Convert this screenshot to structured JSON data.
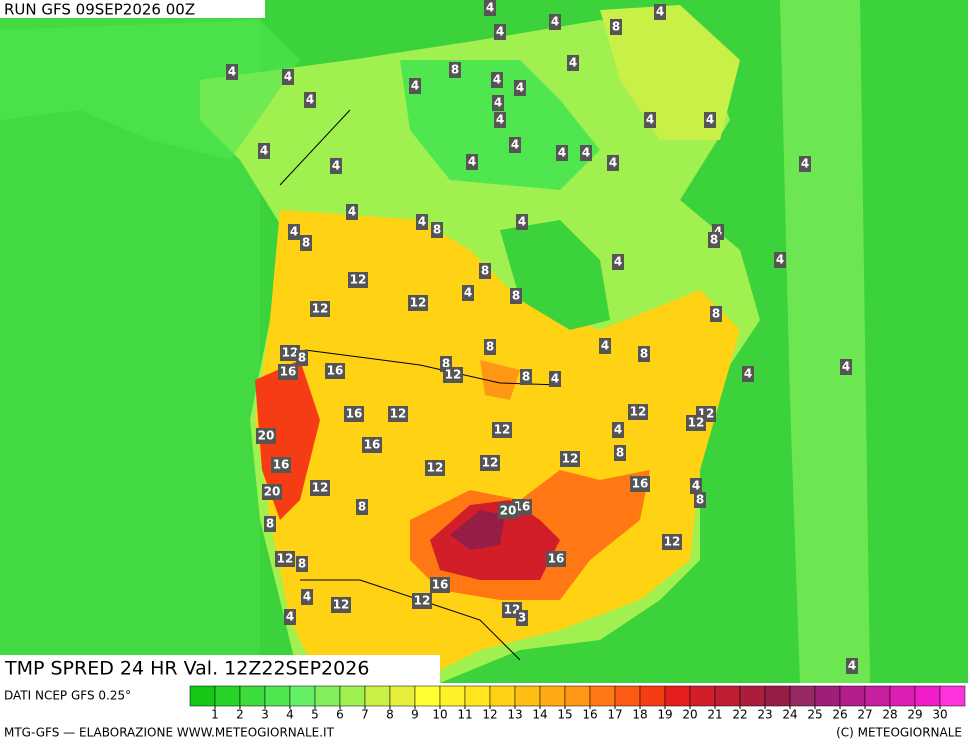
{
  "header": {
    "title": "RUN GFS 09SEP2026 00Z"
  },
  "map": {
    "product": "TMP SPRED 24 HR Val. 12Z22SEP2026",
    "contour_labels": [
      4,
      8,
      4,
      4,
      4,
      4,
      4,
      8,
      4,
      4,
      4,
      4,
      4,
      4,
      4,
      4,
      4,
      4,
      4,
      4,
      4,
      4,
      4,
      4,
      4,
      4,
      4,
      8,
      4,
      4,
      8,
      4,
      8,
      4,
      4,
      8,
      12,
      4,
      8,
      12,
      12,
      8,
      12,
      8,
      4,
      8,
      8,
      8,
      12,
      8,
      4,
      4,
      4,
      16,
      16,
      16,
      12,
      12,
      12,
      12,
      4,
      12,
      16,
      20,
      8,
      12,
      12,
      12,
      16,
      16,
      12,
      4,
      8,
      20,
      16,
      20,
      8,
      8,
      12,
      12,
      8,
      16,
      16,
      4,
      12,
      12,
      12,
      3,
      4,
      4
    ]
  },
  "legend": {
    "source": "DATI NCEP GFS 0.25°",
    "ticks": [
      1,
      2,
      3,
      4,
      5,
      6,
      7,
      8,
      9,
      10,
      11,
      12,
      13,
      14,
      15,
      16,
      17,
      18,
      19,
      20,
      21,
      22,
      23,
      24,
      25,
      26,
      27,
      28,
      29,
      30
    ],
    "colors": [
      "#14c814",
      "#28d228",
      "#3cdc3c",
      "#50e650",
      "#64f064",
      "#82f05a",
      "#a0f050",
      "#c8f046",
      "#e6f03c",
      "#ffff32",
      "#fff028",
      "#ffe61e",
      "#ffd214",
      "#ffbe14",
      "#ffaa14",
      "#ff9614",
      "#ff7814",
      "#ff5a14",
      "#f53c14",
      "#e61e1e",
      "#d21e28",
      "#be1e32",
      "#aa1e3c",
      "#961e46",
      "#962864",
      "#a01e78",
      "#b41e8c",
      "#c81ea0",
      "#dc1eb4",
      "#f01ec8",
      "#ff32dc"
    ]
  },
  "footer": {
    "left": "MTG-GFS — ELABORAZIONE WWW.METEOGIORNALE.IT",
    "right": "(C) METEOGIORNALE"
  }
}
